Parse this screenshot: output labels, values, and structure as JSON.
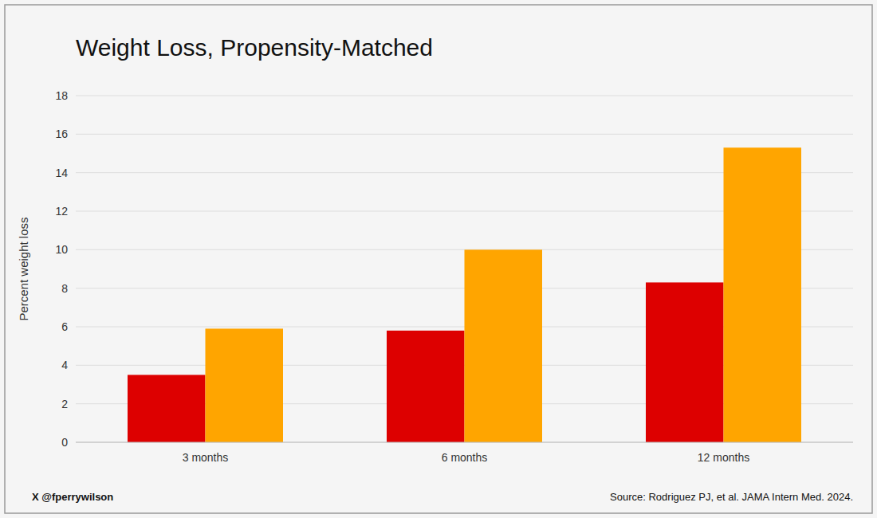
{
  "chart_data": {
    "type": "bar",
    "title": "Weight Loss, Propensity-Matched",
    "y_label": "Percent weight loss",
    "categories": [
      "3 months",
      "6 months",
      "12 months"
    ],
    "series": [
      {
        "color": "#DD0000",
        "values": [
          3.5,
          5.8,
          8.3
        ]
      },
      {
        "color": "#FFA500",
        "values": [
          5.9,
          10.0,
          15.3
        ]
      }
    ],
    "ylim": [
      0,
      18
    ],
    "yticks": [
      0,
      2,
      4,
      6,
      8,
      10,
      12,
      14,
      16,
      18
    ],
    "grid": true,
    "annotations": [
      "X @fperrywilson",
      "Source: Rodriguez PJ, et al. JAMA Intern Med. 2024."
    ]
  }
}
